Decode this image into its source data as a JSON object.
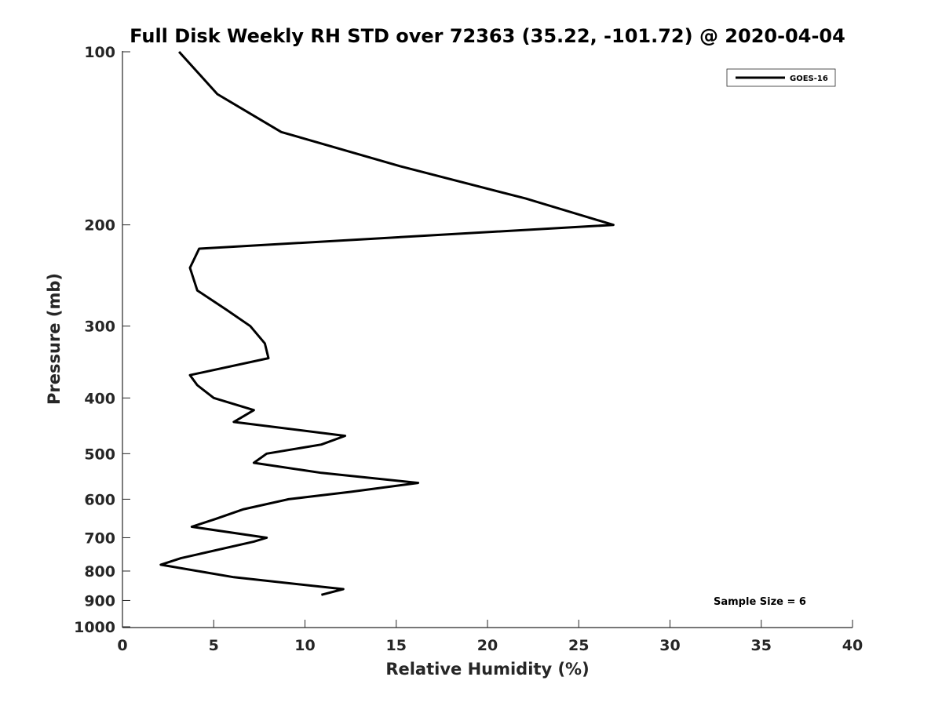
{
  "chart_data": {
    "type": "line",
    "title": "Full Disk Weekly RH STD over 72363 (35.22, -101.72) @ 2020-04-04",
    "xlabel": "Relative Humidity (%)",
    "ylabel": "Pressure (mb)",
    "xlim": [
      0,
      40
    ],
    "ylim": [
      100,
      1000
    ],
    "y_scale": "log",
    "y_reversed": true,
    "x_ticks": [
      "0",
      "5",
      "10",
      "15",
      "20",
      "25",
      "30",
      "35",
      "40"
    ],
    "y_ticks": [
      "100",
      "200",
      "300",
      "400",
      "500",
      "600",
      "700",
      "800",
      "900",
      "1000"
    ],
    "grid": false,
    "legend": {
      "position": "top-right",
      "entries": [
        "GOES-16"
      ]
    },
    "annotation": "Sample Size = 6",
    "series": [
      {
        "name": "GOES-16",
        "color": "#000000",
        "points": [
          [
            3.1,
            100
          ],
          [
            5.2,
            118.5
          ],
          [
            8.7,
            137.9
          ],
          [
            15.2,
            158.1
          ],
          [
            22.1,
            180.0
          ],
          [
            26.9,
            200.0
          ],
          [
            4.2,
            220.0
          ],
          [
            3.7,
            237.5
          ],
          [
            4.1,
            260.0
          ],
          [
            5.7,
            281.0
          ],
          [
            7.0,
            300.0
          ],
          [
            7.8,
            321.5
          ],
          [
            8.0,
            341.1
          ],
          [
            3.7,
            365.0
          ],
          [
            4.1,
            380.0
          ],
          [
            5.0,
            400.0
          ],
          [
            7.2,
            420.0
          ],
          [
            6.1,
            440.3
          ],
          [
            12.2,
            465.5
          ],
          [
            10.9,
            482.0
          ],
          [
            7.9,
            500.0
          ],
          [
            7.2,
            518.7
          ],
          [
            10.9,
            540.0
          ],
          [
            16.2,
            562.0
          ],
          [
            12.5,
            582.5
          ],
          [
            9.1,
            600.0
          ],
          [
            6.6,
            625.0
          ],
          [
            5.1,
            649.5
          ],
          [
            3.8,
            670.0
          ],
          [
            7.9,
            700.0
          ],
          [
            7.2,
            711.0
          ],
          [
            3.2,
            760.0
          ],
          [
            2.1,
            780.0
          ],
          [
            6.1,
            820.0
          ],
          [
            12.1,
            860.0
          ],
          [
            10.9,
            880.0
          ]
        ]
      }
    ]
  }
}
